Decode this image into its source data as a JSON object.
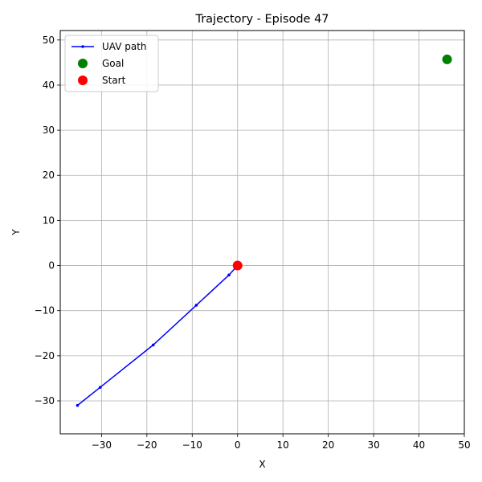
{
  "chart_data": {
    "type": "line",
    "title": "Trajectory - Episode 47",
    "xlabel": "X",
    "ylabel": "Y",
    "xlim": [
      -39.1,
      50
    ],
    "ylim": [
      -37.3,
      52.1
    ],
    "xticks": [
      -30,
      -20,
      -10,
      0,
      10,
      20,
      30,
      40,
      50
    ],
    "yticks": [
      -30,
      -20,
      -10,
      0,
      10,
      20,
      30,
      40,
      50
    ],
    "grid": true,
    "legend_position": "top-left",
    "series": [
      {
        "name": "UAV path",
        "kind": "line",
        "color": "#0000ff",
        "x": [
          0,
          -1.9,
          -9.1,
          -18.6,
          -30.3,
          -35.3
        ],
        "y": [
          0,
          -2.1,
          -8.8,
          -17.6,
          -27.0,
          -31.0
        ]
      },
      {
        "name": "Goal",
        "kind": "scatter",
        "color": "#008000",
        "x": [
          46.2
        ],
        "y": [
          45.7
        ]
      },
      {
        "name": "Start",
        "kind": "scatter",
        "color": "#ff0000",
        "x": [
          0
        ],
        "y": [
          0
        ]
      }
    ]
  }
}
